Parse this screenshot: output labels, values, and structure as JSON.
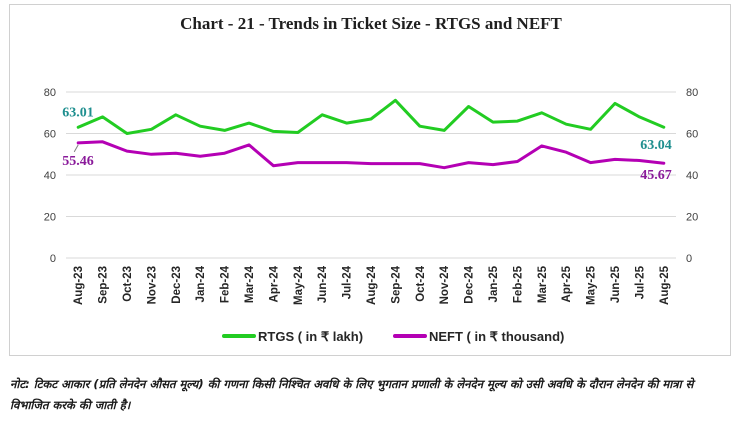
{
  "colors": {
    "rtgs": "#22cc22",
    "neft": "#b400b4",
    "rtgs_label": "#1f8f8f",
    "neft_label": "#8a1a9a",
    "grid": "#d9d9d9"
  },
  "note": "नोट: टिकट आकार (प्रति लेनदेन औसत मूल्य) की गणना किसी निश्चित अवधि के लिए भुगतान प्रणाली के लेनदेन मूल्य को उसी अवधि के दौरान लेनदेन की मात्रा से विभाजित करके की जाती है।",
  "chart_data": {
    "type": "line",
    "title": "Chart - 21 - Trends in Ticket Size - RTGS and NEFT",
    "categories": [
      "Aug-23",
      "Sep-23",
      "Oct-23",
      "Nov-23",
      "Dec-23",
      "Jan-24",
      "Feb-24",
      "Mar-24",
      "Apr-24",
      "May-24",
      "Jun-24",
      "Jul-24",
      "Aug-24",
      "Sep-24",
      "Oct-24",
      "Nov-24",
      "Dec-24",
      "Jan-25",
      "Feb-25",
      "Mar-25",
      "Apr-25",
      "May-25",
      "Jun-25",
      "Jul-25",
      "Aug-25"
    ],
    "ylim": [
      0,
      80
    ],
    "yticks": [
      0,
      20,
      40,
      60,
      80
    ],
    "grid": true,
    "legend_position": "bottom",
    "series": [
      {
        "name": "RTGS ( in ₹ lakh)",
        "color": "#22cc22",
        "values": [
          63.01,
          68,
          60,
          62,
          69,
          63.5,
          61.5,
          65,
          61,
          60.5,
          69,
          65,
          67,
          76,
          63.5,
          61.5,
          73,
          65.5,
          66,
          70,
          64.5,
          62,
          74.5,
          68,
          63.04
        ]
      },
      {
        "name": "NEFT ( in ₹ thousand)",
        "color": "#b400b4",
        "values": [
          55.46,
          56,
          51.5,
          50,
          50.5,
          49,
          50.5,
          54.5,
          44.5,
          46,
          46,
          46,
          45.5,
          45.5,
          45.5,
          43.5,
          46,
          45,
          46.5,
          54,
          51,
          46,
          47.5,
          47,
          45.67
        ]
      }
    ],
    "data_labels": [
      {
        "series": 0,
        "index": 0,
        "text": "63.01"
      },
      {
        "series": 0,
        "index": 24,
        "text": "63.04"
      },
      {
        "series": 1,
        "index": 0,
        "text": "55.46"
      },
      {
        "series": 1,
        "index": 24,
        "text": "45.67"
      }
    ]
  }
}
